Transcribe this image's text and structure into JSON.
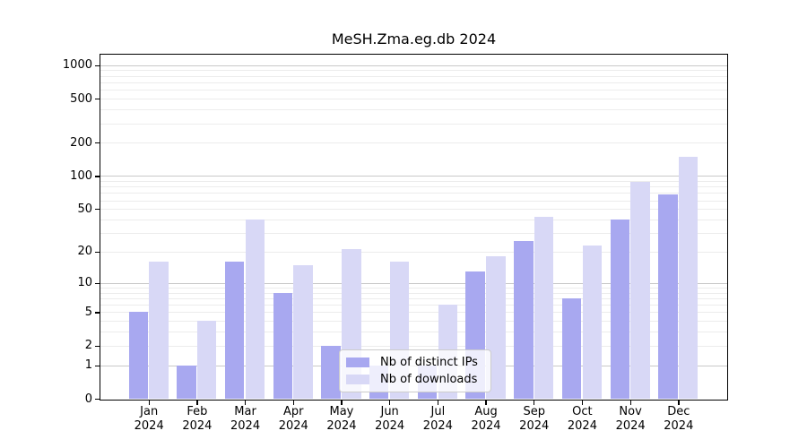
{
  "title": "MeSH.Zma.eg.db 2024",
  "colors": {
    "ips_bar": "#a8a8f0",
    "downloads_bar": "#d8d8f6",
    "grid_major": "#c8c8c8",
    "grid_minor": "#ececec",
    "axis_line": "#000000",
    "legend_border": "#cccccc",
    "text": "#000000"
  },
  "y_axis": {
    "tick_values": [
      0,
      1,
      2,
      5,
      10,
      20,
      50,
      100,
      200,
      500,
      1000
    ],
    "major_gridlines": [
      1,
      10,
      100,
      1000
    ],
    "minor_gridlines": [
      2,
      3,
      4,
      5,
      6,
      7,
      8,
      9,
      20,
      30,
      40,
      50,
      60,
      70,
      80,
      90,
      200,
      300,
      400,
      500,
      600,
      700,
      800,
      900
    ]
  },
  "x_axis": {
    "months": [
      "Jan",
      "Feb",
      "Mar",
      "Apr",
      "May",
      "Jun",
      "Jul",
      "Aug",
      "Sep",
      "Oct",
      "Nov",
      "Dec"
    ],
    "year": "2024"
  },
  "legend": {
    "items": [
      {
        "label": "Nb of distinct IPs",
        "series": "ips"
      },
      {
        "label": "Nb of downloads",
        "series": "downloads"
      }
    ]
  },
  "chart_data": {
    "type": "bar",
    "title": "MeSH.Zma.eg.db 2024",
    "categories": [
      "Jan 2024",
      "Feb 2024",
      "Mar 2024",
      "Apr 2024",
      "May 2024",
      "Jun 2024",
      "Jul 2024",
      "Aug 2024",
      "Sep 2024",
      "Oct 2024",
      "Nov 2024",
      "Dec 2024"
    ],
    "series": [
      {
        "name": "Nb of distinct IPs",
        "values": [
          5,
          1,
          16,
          8,
          2,
          1,
          1,
          13,
          25,
          7,
          40,
          68
        ]
      },
      {
        "name": "Nb of downloads",
        "values": [
          16,
          4,
          40,
          15,
          21,
          16,
          6,
          18,
          42,
          23,
          88,
          150
        ]
      }
    ],
    "xlabel": "",
    "ylabel": "",
    "yscale": "log1p",
    "ylim": [
      0,
      1300
    ],
    "yticks": [
      0,
      1,
      2,
      5,
      10,
      20,
      50,
      100,
      200,
      500,
      1000
    ],
    "grid": "horizontal, major+minor",
    "legend_position": "inside lower center"
  }
}
